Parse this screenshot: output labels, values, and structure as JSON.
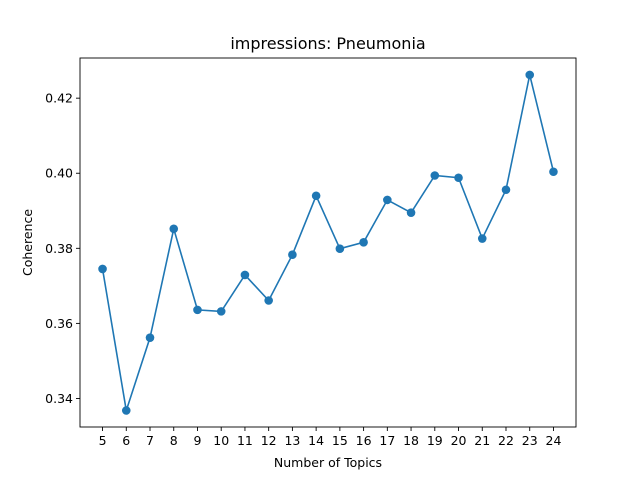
{
  "chart_data": {
    "type": "line",
    "title": "impressions: Pneumonia",
    "xlabel": "Number of Topics",
    "ylabel": "Coherence",
    "x": [
      5,
      6,
      7,
      8,
      9,
      10,
      11,
      12,
      13,
      14,
      15,
      16,
      17,
      18,
      19,
      20,
      21,
      22,
      23,
      24
    ],
    "series": [
      {
        "values": [
          0.3745,
          0.3368,
          0.3562,
          0.3852,
          0.3636,
          0.3632,
          0.3729,
          0.3661,
          0.3783,
          0.394,
          0.3799,
          0.3816,
          0.3929,
          0.3895,
          0.3994,
          0.3988,
          0.3826,
          0.3956,
          0.4262,
          0.4004
        ],
        "color": "#1f77b4",
        "marker": "circle"
      }
    ],
    "xticks": [
      "5",
      "6",
      "7",
      "8",
      "9",
      "10",
      "11",
      "12",
      "13",
      "14",
      "15",
      "16",
      "17",
      "18",
      "19",
      "20",
      "21",
      "22",
      "23",
      "24"
    ],
    "yticks": [
      {
        "value": 0.34,
        "label": "0.34"
      },
      {
        "value": 0.36,
        "label": "0.36"
      },
      {
        "value": 0.38,
        "label": "0.38"
      },
      {
        "value": 0.4,
        "label": "0.40"
      },
      {
        "value": 0.42,
        "label": "0.42"
      }
    ],
    "xlim": [
      4.05,
      24.95
    ],
    "ylim": [
      0.3324,
      0.4307
    ],
    "grid": false,
    "legend": "none"
  }
}
